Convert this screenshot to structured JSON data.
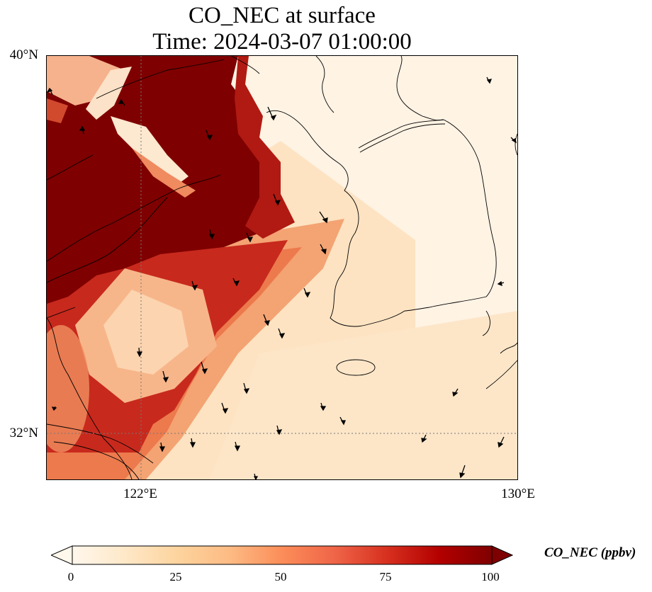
{
  "title": {
    "line1": "CO_NEC at surface",
    "line2": "Time: 2024-03-07 01:00:00"
  },
  "axes": {
    "lat_labels": [
      "40°N",
      "32°N"
    ],
    "lon_labels": [
      "122°E",
      "130°E"
    ],
    "gridlines": "dotted"
  },
  "map": {
    "variable": "CO_NEC",
    "units": "ppbv",
    "extent": {
      "lon_min": 120,
      "lon_max": 130,
      "lat_min": 31,
      "lat_max": 40
    },
    "features": [
      "coastlines",
      "wind-vectors",
      "graticule"
    ],
    "plume_description_colors": {
      "high": "#7f0000",
      "mid": "#e8643b",
      "low": "#fde0b8",
      "background": "#fff5eb"
    }
  },
  "colorbar": {
    "label": "CO_NEC (ppbv)",
    "ticks": [
      "0",
      "25",
      "50",
      "75",
      "100"
    ],
    "range": [
      0,
      100
    ],
    "colormap": "OrRd",
    "extend": "both",
    "stops": [
      "#fff7ec",
      "#fee8c8",
      "#fdd49e",
      "#fdbb84",
      "#fc8d59",
      "#ef6548",
      "#d7301f",
      "#b30000",
      "#7f0000"
    ]
  }
}
